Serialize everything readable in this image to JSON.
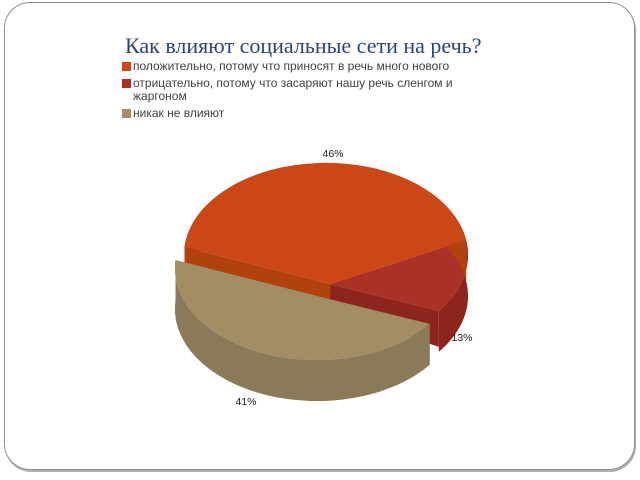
{
  "slide": {
    "title": "Как влияют социальные сети на речь?"
  },
  "legend": {
    "items": [
      {
        "label": "положительно, потому что приносят в речь много нового",
        "color": "#CC4716"
      },
      {
        "label": "отрицательно, потому что засаряют нашу речь сленгом и жаргоном",
        "color": "#A93127"
      },
      {
        "label": "никак не влияют",
        "color": "#A28D65"
      }
    ]
  },
  "chart_data": {
    "type": "pie",
    "style": "3d-exploded",
    "title": "Как влияют социальные сети на речь?",
    "categories": [
      "положительно, потому что приносят в речь много нового",
      "отрицательно, потому что засаряют нашу речь сленгом и жаргоном",
      "никак не влияют"
    ],
    "values": [
      46,
      13,
      41
    ],
    "unit": "%",
    "point_labels": [
      "46%",
      "13%",
      "41%"
    ],
    "colors": [
      "#CC4716",
      "#A93127",
      "#A28D65"
    ],
    "side_colors": [
      "#B24110",
      "#8E251D",
      "#8B7A57"
    ],
    "exploded_index": 2,
    "start_angle_deg": 175,
    "direction": "clockwise",
    "legend_position": "top-left",
    "data_labels": "outside-percent"
  }
}
